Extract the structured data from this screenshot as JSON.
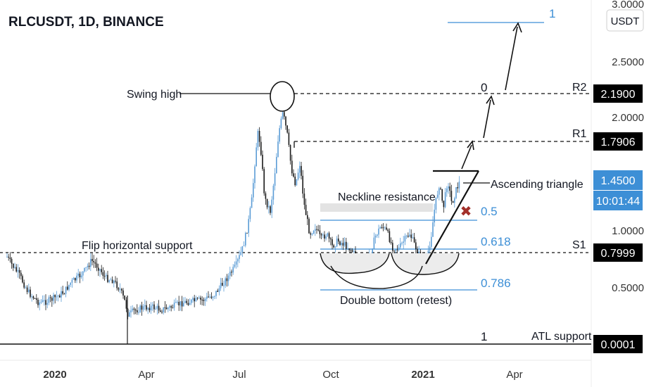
{
  "header": {
    "title": "RLCUSDT, 1D, BINANCE"
  },
  "currency_badge": "USDT",
  "chart_data": {
    "type": "candlestick",
    "title": "RLCUSDT, 1D, BINANCE",
    "y_ticks": [
      "3.0000",
      "2.5000",
      "2.0000",
      "1.0000",
      "0.5000"
    ],
    "x_ticks": [
      "2020",
      "Apr",
      "Jul",
      "Oct",
      "2021",
      "Apr"
    ],
    "price_tags": [
      {
        "value": "2.1900",
        "style": "dark"
      },
      {
        "value": "1.7906",
        "style": "dark"
      },
      {
        "value": "1.4500",
        "style": "blue"
      },
      {
        "value": "10:01:44",
        "style": "blue"
      },
      {
        "value": "0.7999",
        "style": "dark"
      },
      {
        "value": "0.0001",
        "style": "dark"
      }
    ],
    "levels": {
      "r2": {
        "label": "R2",
        "price": "2.1900"
      },
      "r1": {
        "label": "R1",
        "price": "1.7906"
      },
      "s1": {
        "label": "S1",
        "price": "0.7999"
      },
      "atl": {
        "label": "ATL support",
        "price": "0.0001"
      }
    },
    "fibonacci": [
      {
        "label": "1",
        "level": 1
      },
      {
        "label": "0",
        "level": 0
      },
      {
        "label": "0.5",
        "level": 0.5
      },
      {
        "label": "0.618",
        "level": 0.618
      },
      {
        "label": "0.786",
        "level": 0.786
      },
      {
        "label": "1",
        "level": 1
      }
    ],
    "annotations": {
      "swing_high": "Swing high",
      "neckline": "Neckline resistance",
      "ascending_triangle": "Ascending triangle",
      "flip_support": "Flip horizontal support",
      "double_bottom": "Double bottom (retest)"
    },
    "colors": {
      "up": "#5b9cd6",
      "down": "#1a1a1a",
      "fib": "#3d8fd6",
      "tag_dark": "#000000",
      "tag_blue": "#3d8fd6"
    }
  }
}
